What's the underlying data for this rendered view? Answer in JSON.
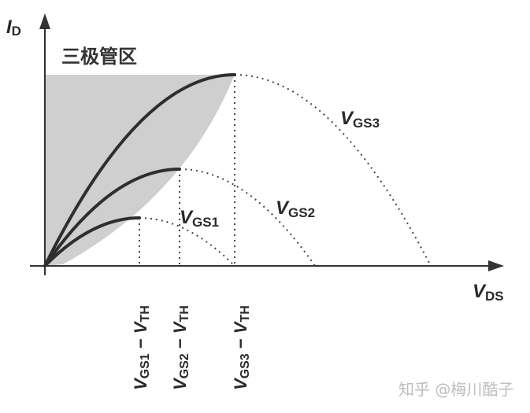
{
  "diagram": {
    "y_axis_label": {
      "main": "I",
      "sub": "D"
    },
    "x_axis_label": {
      "main": "V",
      "sub": "DS"
    },
    "region_label": "三极管区",
    "curves": [
      {
        "label": {
          "main": "V",
          "sub": "GS1"
        }
      },
      {
        "label": {
          "main": "V",
          "sub": "GS2"
        }
      },
      {
        "label": {
          "main": "V",
          "sub": "GS3"
        }
      }
    ],
    "x_ticks": [
      {
        "a": "V",
        "a_sub": "GS1",
        "dash": " − ",
        "b": "V",
        "b_sub": "TH"
      },
      {
        "a": "V",
        "a_sub": "GS2",
        "dash": " − ",
        "b": "V",
        "b_sub": "TH"
      },
      {
        "a": "V",
        "a_sub": "GS3",
        "dash": " − ",
        "b": "V",
        "b_sub": "TH"
      }
    ],
    "colors": {
      "shade": "#cfcfcf",
      "curve": "#2e2e2e"
    }
  },
  "watermark": "知乎 @梅川酷子"
}
